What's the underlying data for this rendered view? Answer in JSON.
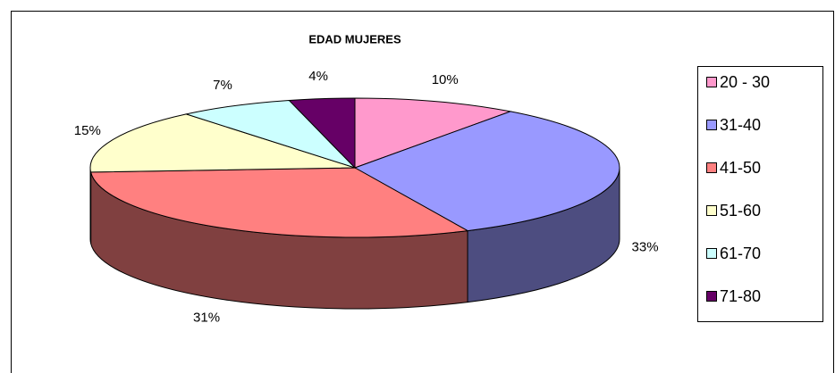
{
  "chart_data": {
    "type": "pie3d",
    "title": "EDAD MUJERES",
    "categories": [
      "20 - 30",
      "31-40",
      "41-50",
      "51-60",
      "61-70",
      "71-80"
    ],
    "values": [
      10,
      33,
      31,
      15,
      7,
      4
    ],
    "value_labels": [
      "10%",
      "33%",
      "31%",
      "15%",
      "7%",
      "4%"
    ],
    "colors": [
      "#FF99CC",
      "#9999FF",
      "#FF8080",
      "#FFFFCC",
      "#CCFFFF",
      "#660066"
    ],
    "legend": "right"
  }
}
